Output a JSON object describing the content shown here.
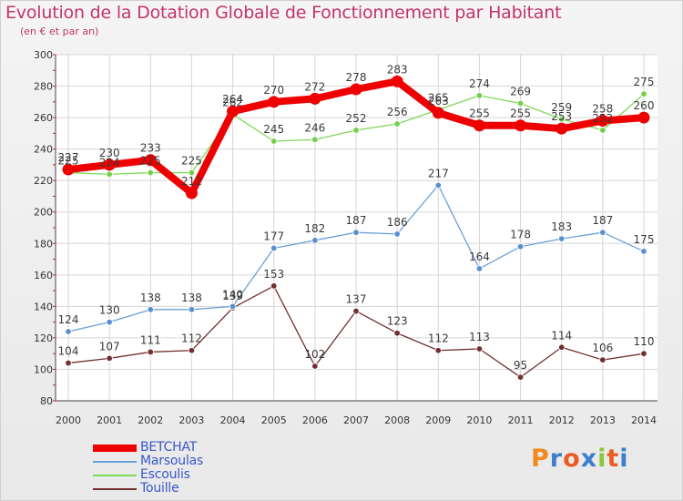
{
  "title": "Evolution de la Dotation Globale de Fonctionnement par Habitant",
  "subtitle": "(en € et par an)",
  "logo_text": "Proxiti",
  "colors": {
    "title": "#c4336d",
    "legend_text": "#3a56c7",
    "logo": [
      "#f08a1d",
      "#3b7fcc",
      "#ea5b26",
      "#3b7fcc",
      "#8cc63f",
      "#ea5b26",
      "#3b7fcc"
    ]
  },
  "chart_data": {
    "type": "line",
    "title": "Evolution de la Dotation Globale de Fonctionnement par Habitant",
    "subtitle": "(en € et par an)",
    "xlabel": "",
    "ylabel": "",
    "ylim": [
      80,
      300
    ],
    "yticks": [
      80,
      100,
      120,
      140,
      160,
      180,
      200,
      220,
      240,
      260,
      280,
      300
    ],
    "grid": true,
    "legend_position": "bottom-left",
    "x": [
      "2000",
      "2001",
      "2002",
      "2003",
      "2004",
      "2005",
      "2006",
      "2007",
      "2008",
      "2009",
      "2010",
      "2011",
      "2012",
      "2013",
      "2014"
    ],
    "series": [
      {
        "name": "BETCHAT",
        "color": "#ee0000",
        "values": [
          227,
          230,
          233,
          212,
          264,
          270,
          272,
          278,
          283,
          263,
          255,
          255,
          253,
          258,
          260
        ]
      },
      {
        "name": "Marsoulas",
        "color": "#6aa0d8",
        "values": [
          124,
          130,
          138,
          138,
          140,
          177,
          182,
          187,
          186,
          217,
          164,
          178,
          183,
          187,
          175
        ]
      },
      {
        "name": "Escoulis",
        "color": "#7ed858",
        "values": [
          225,
          224,
          225,
          225,
          262,
          245,
          246,
          252,
          256,
          265,
          274,
          269,
          259,
          252,
          275
        ]
      },
      {
        "name": "Touille",
        "color": "#722f2f",
        "values": [
          104,
          107,
          111,
          112,
          139,
          153,
          102,
          137,
          123,
          112,
          113,
          95,
          114,
          106,
          110
        ]
      }
    ]
  }
}
